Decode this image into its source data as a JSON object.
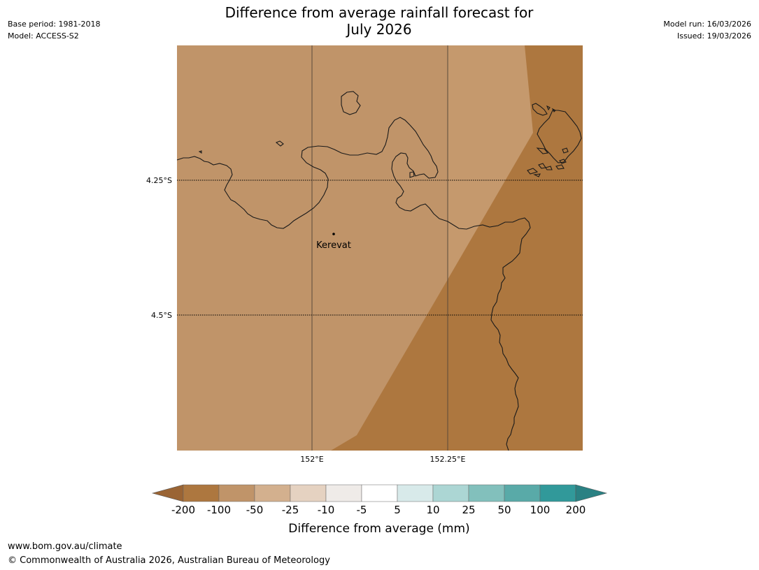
{
  "header": {
    "title_line1": "Difference from average rainfall forecast for",
    "title_line2": "July 2026",
    "base_period": "Base period: 1981-2018",
    "model": "Model: ACCESS-S2",
    "model_run": "Model run: 16/03/2026",
    "issued": "Issued: 19/03/2026"
  },
  "map": {
    "lat_labels": [
      "4.25°S",
      "4.5°S"
    ],
    "lon_labels": [
      "152°E",
      "152.25°E"
    ],
    "place": "Kerevat",
    "zone_colors": {
      "light": "#c09469",
      "lighter": "#c5996d",
      "dark": "#ad773f"
    }
  },
  "colorbar": {
    "ticks": [
      "-200",
      "-100",
      "-50",
      "-25",
      "-10",
      "-5",
      "5",
      "10",
      "25",
      "50",
      "100",
      "200"
    ],
    "colors": [
      "#ad773f",
      "#c09469",
      "#d3b08e",
      "#e5d2c1",
      "#efebe8",
      "#ffffff",
      "#d8eaea",
      "#acd6d4",
      "#82c0bc",
      "#59aaa8",
      "#31999a"
    ],
    "extend_low_color": "#9a6434",
    "extend_high_color": "#2a8183",
    "label": "Difference from average (mm)"
  },
  "footer": {
    "url": "www.bom.gov.au/climate",
    "copyright": "© Commonwealth of Australia 2026, Australian Bureau of Meteorology"
  }
}
